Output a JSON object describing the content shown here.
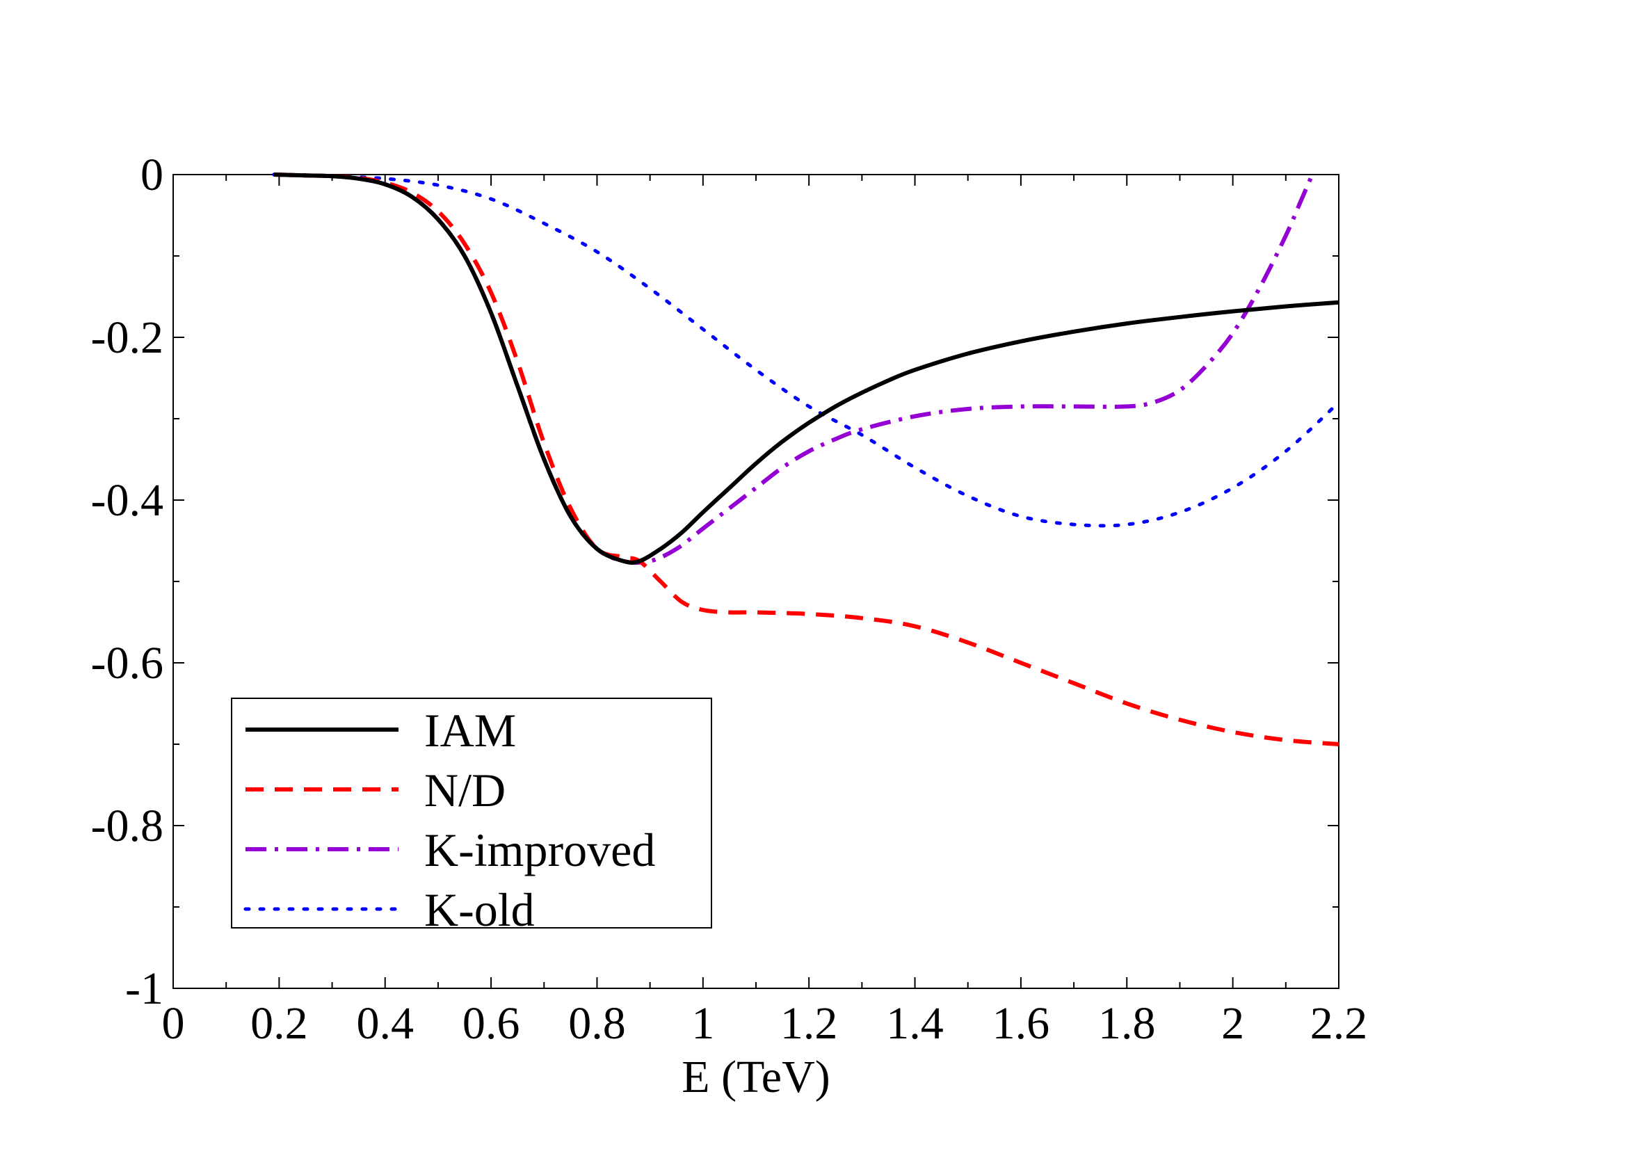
{
  "chart_data": {
    "type": "line",
    "title": "",
    "xlabel": "E (TeV)",
    "ylabel": "",
    "xlim": [
      0,
      2.2
    ],
    "ylim": [
      -1,
      0
    ],
    "grid": false,
    "legend_position": "bottom-left",
    "x_ticks": [
      {
        "value": 0,
        "label": "0"
      },
      {
        "value": 0.2,
        "label": "0.2"
      },
      {
        "value": 0.4,
        "label": "0.4"
      },
      {
        "value": 0.6,
        "label": "0.6"
      },
      {
        "value": 0.8,
        "label": "0.8"
      },
      {
        "value": 1.0,
        "label": "1"
      },
      {
        "value": 1.2,
        "label": "1.2"
      },
      {
        "value": 1.4,
        "label": "1.4"
      },
      {
        "value": 1.6,
        "label": "1.6"
      },
      {
        "value": 1.8,
        "label": "1.8"
      },
      {
        "value": 2.0,
        "label": "2"
      },
      {
        "value": 2.2,
        "label": "2.2"
      }
    ],
    "y_ticks": [
      {
        "value": 0,
        "label": "0"
      },
      {
        "value": -0.2,
        "label": "-0.2"
      },
      {
        "value": -0.4,
        "label": "-0.4"
      },
      {
        "value": -0.6,
        "label": "-0.6"
      },
      {
        "value": -0.8,
        "label": "-0.8"
      },
      {
        "value": -1.0,
        "label": "-1"
      }
    ],
    "series": [
      {
        "name": "IAM",
        "color": "#000000",
        "style": "solid",
        "x": [
          0.19,
          0.25,
          0.3,
          0.35,
          0.4,
          0.45,
          0.5,
          0.55,
          0.6,
          0.65,
          0.7,
          0.75,
          0.8,
          0.85,
          0.88,
          0.92,
          0.96,
          1.0,
          1.05,
          1.1,
          1.15,
          1.2,
          1.25,
          1.3,
          1.35,
          1.4,
          1.5,
          1.6,
          1.7,
          1.8,
          1.9,
          2.0,
          2.1,
          2.2
        ],
        "y": [
          0.0,
          -0.001,
          -0.002,
          -0.005,
          -0.012,
          -0.027,
          -0.055,
          -0.1,
          -0.17,
          -0.26,
          -0.35,
          -0.42,
          -0.46,
          -0.475,
          -0.475,
          -0.46,
          -0.44,
          -0.415,
          -0.385,
          -0.355,
          -0.328,
          -0.305,
          -0.285,
          -0.268,
          -0.253,
          -0.24,
          -0.22,
          -0.205,
          -0.193,
          -0.183,
          -0.175,
          -0.168,
          -0.162,
          -0.157
        ]
      },
      {
        "name": "N/D",
        "color": "#ff0000",
        "style": "dashed",
        "x": [
          0.19,
          0.25,
          0.3,
          0.35,
          0.4,
          0.45,
          0.5,
          0.55,
          0.6,
          0.65,
          0.7,
          0.75,
          0.8,
          0.85,
          0.88,
          0.92,
          0.96,
          1.0,
          1.05,
          1.1,
          1.2,
          1.3,
          1.4,
          1.5,
          1.6,
          1.7,
          1.8,
          1.9,
          2.0,
          2.1,
          2.2
        ],
        "y": [
          0.0,
          -0.001,
          -0.002,
          -0.004,
          -0.01,
          -0.022,
          -0.045,
          -0.085,
          -0.145,
          -0.23,
          -0.33,
          -0.41,
          -0.46,
          -0.47,
          -0.475,
          -0.5,
          -0.525,
          -0.535,
          -0.538,
          -0.538,
          -0.54,
          -0.545,
          -0.555,
          -0.575,
          -0.6,
          -0.625,
          -0.65,
          -0.67,
          -0.685,
          -0.695,
          -0.7
        ]
      },
      {
        "name": "K-improved",
        "color": "#9400d3",
        "style": "dashdot",
        "x": [
          0.19,
          0.25,
          0.3,
          0.35,
          0.4,
          0.45,
          0.5,
          0.55,
          0.6,
          0.65,
          0.7,
          0.75,
          0.8,
          0.85,
          0.9,
          0.95,
          1.0,
          1.05,
          1.1,
          1.15,
          1.2,
          1.25,
          1.3,
          1.4,
          1.5,
          1.6,
          1.7,
          1.8,
          1.85,
          1.9,
          1.95,
          2.0,
          2.05,
          2.1,
          2.13,
          2.15
        ],
        "y": [
          0.0,
          -0.001,
          -0.002,
          -0.005,
          -0.012,
          -0.027,
          -0.055,
          -0.1,
          -0.17,
          -0.26,
          -0.35,
          -0.42,
          -0.46,
          -0.475,
          -0.475,
          -0.46,
          -0.435,
          -0.41,
          -0.385,
          -0.36,
          -0.34,
          -0.325,
          -0.313,
          -0.297,
          -0.288,
          -0.285,
          -0.285,
          -0.285,
          -0.28,
          -0.265,
          -0.235,
          -0.195,
          -0.14,
          -0.075,
          -0.03,
          0.0
        ]
      },
      {
        "name": "K-old",
        "color": "#0000ff",
        "style": "dotted",
        "x": [
          0.19,
          0.3,
          0.4,
          0.5,
          0.6,
          0.7,
          0.8,
          0.9,
          1.0,
          1.1,
          1.2,
          1.3,
          1.4,
          1.5,
          1.6,
          1.7,
          1.8,
          1.9,
          2.0,
          2.1,
          2.2
        ],
        "y": [
          0.0,
          -0.002,
          -0.005,
          -0.013,
          -0.03,
          -0.06,
          -0.095,
          -0.14,
          -0.19,
          -0.24,
          -0.285,
          -0.32,
          -0.36,
          -0.395,
          -0.42,
          -0.43,
          -0.43,
          -0.415,
          -0.385,
          -0.34,
          -0.28
        ]
      }
    ]
  }
}
